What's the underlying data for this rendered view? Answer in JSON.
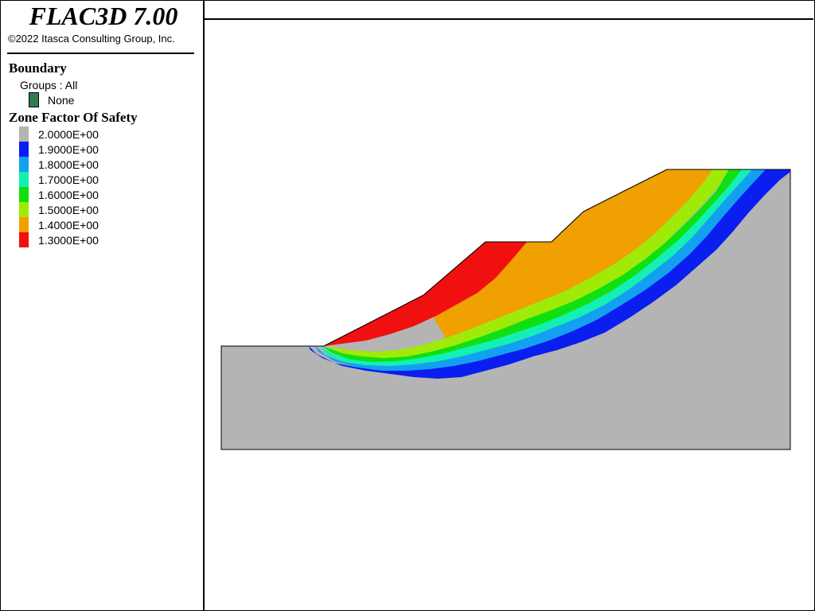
{
  "app": {
    "title": "FLAC3D 7.00",
    "copyright": "©2022 Itasca Consulting Group, Inc."
  },
  "legend": {
    "boundary": {
      "title": "Boundary",
      "groups_text": "Groups : All",
      "item_label": "None",
      "item_color": "#2e7d4f"
    },
    "fos": {
      "title": "Zone Factor Of Safety",
      "items": [
        {
          "label": "2.0000E+00",
          "color": "#b4b4b4"
        },
        {
          "label": "1.9000E+00",
          "color": "#0a1ef0"
        },
        {
          "label": "1.8000E+00",
          "color": "#14a0f0"
        },
        {
          "label": "1.7000E+00",
          "color": "#14f0b4"
        },
        {
          "label": "1.6000E+00",
          "color": "#10e010"
        },
        {
          "label": "1.5000E+00",
          "color": "#a0ea08"
        },
        {
          "label": "1.4000E+00",
          "color": "#f0a000"
        },
        {
          "label": "1.3000E+00",
          "color": "#f01010"
        }
      ]
    }
  }
}
